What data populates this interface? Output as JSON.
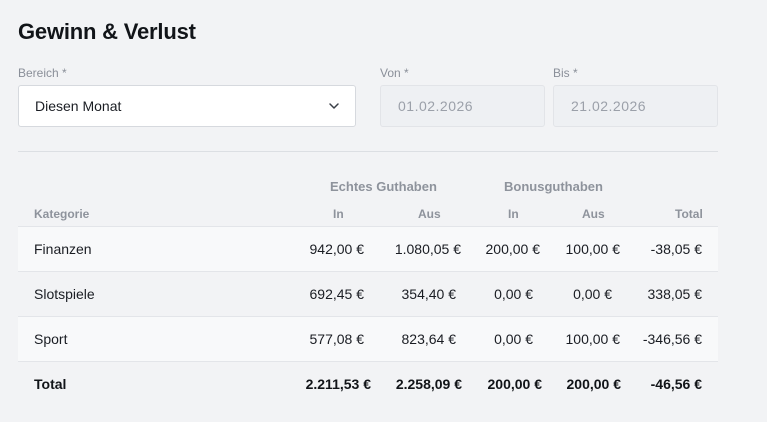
{
  "title": "Gewinn & Verlust",
  "filters": {
    "bereich_label": "Bereich *",
    "bereich_value": "Diesen Monat",
    "von_label": "Von *",
    "von_value": "01.02.2026",
    "bis_label": "Bis *",
    "bis_value": "21.02.2026"
  },
  "table": {
    "groups": {
      "echt": "Echtes Guthaben",
      "bonus": "Bonusguthaben"
    },
    "headers": {
      "kategorie": "Kategorie",
      "echt_in": "In",
      "echt_aus": "Aus",
      "bonus_in": "In",
      "bonus_aus": "Aus",
      "total": "Total"
    },
    "rows": [
      {
        "kategorie": "Finanzen",
        "echt_in": "942,00 €",
        "echt_aus": "1.080,05 €",
        "bonus_in": "200,00 €",
        "bonus_aus": "100,00 €",
        "total": "-38,05 €"
      },
      {
        "kategorie": "Slotspiele",
        "echt_in": "692,45 €",
        "echt_aus": "354,40 €",
        "bonus_in": "0,00 €",
        "bonus_aus": "0,00 €",
        "total": "338,05 €"
      },
      {
        "kategorie": "Sport",
        "echt_in": "577,08 €",
        "echt_aus": "823,64 €",
        "bonus_in": "0,00 €",
        "bonus_aus": "100,00 €",
        "total": "-346,56 €"
      }
    ],
    "total_row": {
      "kategorie": "Total",
      "echt_in": "2.211,53 €",
      "echt_aus": "2.258,09 €",
      "bonus_in": "200,00 €",
      "bonus_aus": "200,00 €",
      "total": "-46,56 €"
    }
  },
  "icons": {
    "select_chevron": "chevron-down-icon"
  }
}
